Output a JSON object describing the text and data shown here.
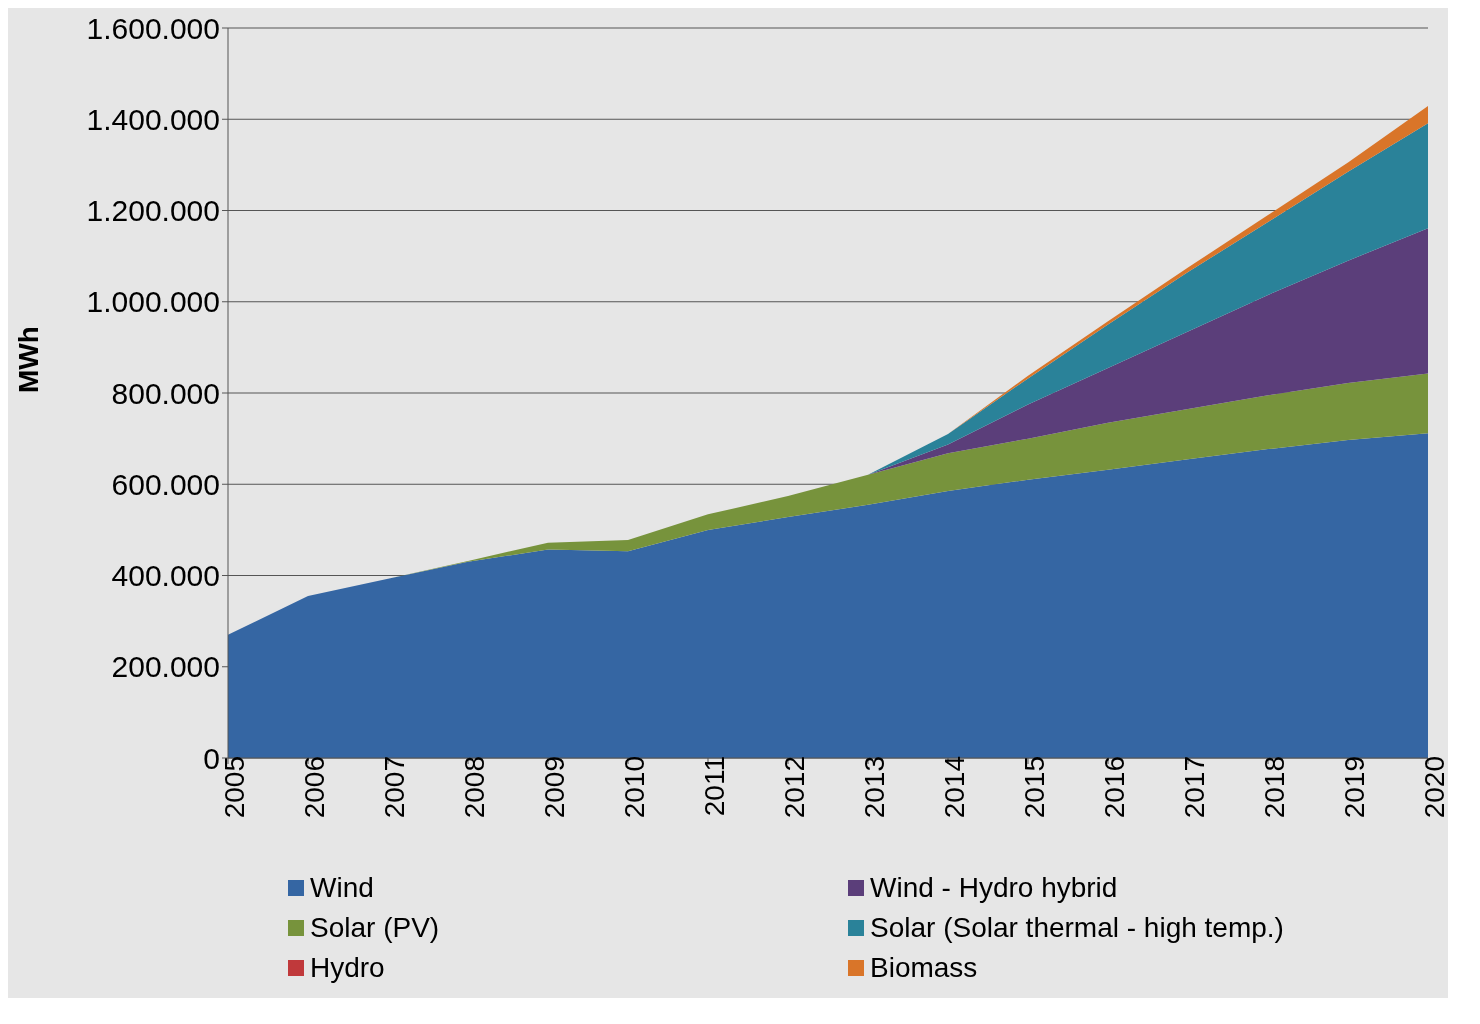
{
  "chart_data": {
    "type": "area",
    "stacked": true,
    "ylabel": "MWh",
    "x": [
      2005,
      2006,
      2007,
      2008,
      2009,
      2010,
      2011,
      2012,
      2013,
      2014,
      2015,
      2016,
      2017,
      2018,
      2019,
      2020
    ],
    "xlim": [
      2005,
      2020
    ],
    "xticks": [
      2005,
      2006,
      2007,
      2008,
      2009,
      2010,
      2011,
      2012,
      2013,
      2014,
      2015,
      2016,
      2017,
      2018,
      2019,
      2020
    ],
    "ylim": [
      0,
      1600000
    ],
    "yticks": [
      0,
      {
        "value": 200000,
        "label": "200.000"
      },
      {
        "value": 400000,
        "label": "400.000"
      },
      {
        "value": 600000,
        "label": "600.000"
      },
      {
        "value": 800000,
        "label": "800.000"
      },
      {
        "value": 1000000,
        "label": "1.000.000"
      },
      {
        "value": 1200000,
        "label": "1.200.000"
      },
      {
        "value": 1400000,
        "label": "1.400.000"
      },
      {
        "value": 1600000,
        "label": "1.600.000"
      }
    ],
    "grid": "y",
    "legend": "bottom",
    "series": [
      {
        "name": "Wind",
        "color": "#3566a3",
        "values": [
          270000,
          355000,
          393000,
          430000,
          457000,
          453000,
          500000,
          528000,
          555000,
          585000,
          610000,
          632000,
          655000,
          677000,
          697000,
          712000
        ]
      },
      {
        "name": "Solar (PV)",
        "color": "#77933c",
        "values": [
          0,
          0,
          0,
          2000,
          15000,
          25000,
          34000,
          46000,
          66000,
          83000,
          90000,
          103000,
          110000,
          118000,
          125000,
          131000
        ]
      },
      {
        "name": "Hydro",
        "color": "#c0393b",
        "values": [
          null,
          null,
          null,
          null,
          null,
          null,
          null,
          null,
          null,
          null,
          null,
          null,
          null,
          null,
          null,
          null
        ]
      },
      {
        "name": "Wind - Hydro hybrid",
        "color": "#5b3e7a",
        "values": [
          0,
          0,
          0,
          0,
          0,
          0,
          0,
          0,
          0,
          19000,
          75000,
          120000,
          170000,
          220000,
          268000,
          318000
        ]
      },
      {
        "name": "Solar (Solar thermal - high temp.)",
        "color": "#2a8299",
        "values": [
          0,
          0,
          0,
          0,
          0,
          0,
          0,
          0,
          0,
          23000,
          57000,
          95000,
          130000,
          160000,
          195000,
          230000
        ]
      },
      {
        "name": "Biomass",
        "color": "#d97529",
        "values": [
          0,
          0,
          0,
          0,
          0,
          0,
          0,
          0,
          0,
          0,
          6000,
          7000,
          10000,
          15000,
          20000,
          38000
        ]
      }
    ]
  }
}
